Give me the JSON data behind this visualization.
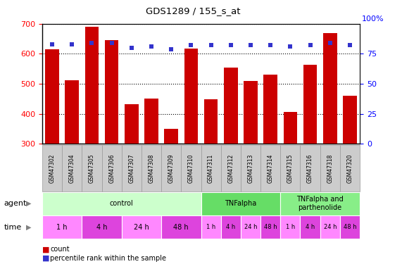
{
  "title": "GDS1289 / 155_s_at",
  "samples": [
    "GSM47302",
    "GSM47304",
    "GSM47305",
    "GSM47306",
    "GSM47307",
    "GSM47308",
    "GSM47309",
    "GSM47310",
    "GSM47311",
    "GSM47312",
    "GSM47313",
    "GSM47314",
    "GSM47315",
    "GSM47316",
    "GSM47318",
    "GSM47320"
  ],
  "counts": [
    614,
    511,
    690,
    646,
    431,
    452,
    349,
    618,
    448,
    555,
    510,
    531,
    407,
    564,
    669,
    461
  ],
  "percentiles": [
    83,
    83,
    84,
    84,
    80,
    81,
    79,
    82,
    82,
    82,
    82,
    82,
    81,
    82,
    84,
    82
  ],
  "bar_color": "#cc0000",
  "dot_color": "#3333cc",
  "ylim_left": [
    300,
    700
  ],
  "ylim_right": [
    0,
    100
  ],
  "yticks_left": [
    300,
    400,
    500,
    600,
    700
  ],
  "yticks_right": [
    0,
    25,
    50,
    75
  ],
  "agent_labels": [
    {
      "label": "control",
      "start": 0,
      "end": 8,
      "color": "#ccffcc"
    },
    {
      "label": "TNFalpha",
      "start": 8,
      "end": 12,
      "color": "#66dd66"
    },
    {
      "label": "TNFalpha and\nparthenolide",
      "start": 12,
      "end": 16,
      "color": "#88ee88"
    }
  ],
  "time_groups": [
    {
      "label": "1 h",
      "start": 0,
      "end": 2,
      "color": "#ff88ff"
    },
    {
      "label": "4 h",
      "start": 2,
      "end": 4,
      "color": "#dd44dd"
    },
    {
      "label": "24 h",
      "start": 4,
      "end": 6,
      "color": "#ff88ff"
    },
    {
      "label": "48 h",
      "start": 6,
      "end": 8,
      "color": "#dd44dd"
    },
    {
      "label": "1 h",
      "start": 8,
      "end": 9,
      "color": "#ff88ff"
    },
    {
      "label": "4 h",
      "start": 9,
      "end": 10,
      "color": "#dd44dd"
    },
    {
      "label": "24 h",
      "start": 10,
      "end": 11,
      "color": "#ff88ff"
    },
    {
      "label": "48 h",
      "start": 11,
      "end": 12,
      "color": "#dd44dd"
    },
    {
      "label": "1 h",
      "start": 12,
      "end": 13,
      "color": "#ff88ff"
    },
    {
      "label": "4 h",
      "start": 13,
      "end": 14,
      "color": "#dd44dd"
    },
    {
      "label": "24 h",
      "start": 14,
      "end": 15,
      "color": "#ff88ff"
    },
    {
      "label": "48 h",
      "start": 15,
      "end": 16,
      "color": "#dd44dd"
    }
  ],
  "legend_count_color": "#cc0000",
  "legend_dot_color": "#3333cc",
  "background_color": "#ffffff",
  "plot_bg_color": "#ffffff",
  "xtick_bg_color": "#cccccc",
  "xtick_border_color": "#999999"
}
